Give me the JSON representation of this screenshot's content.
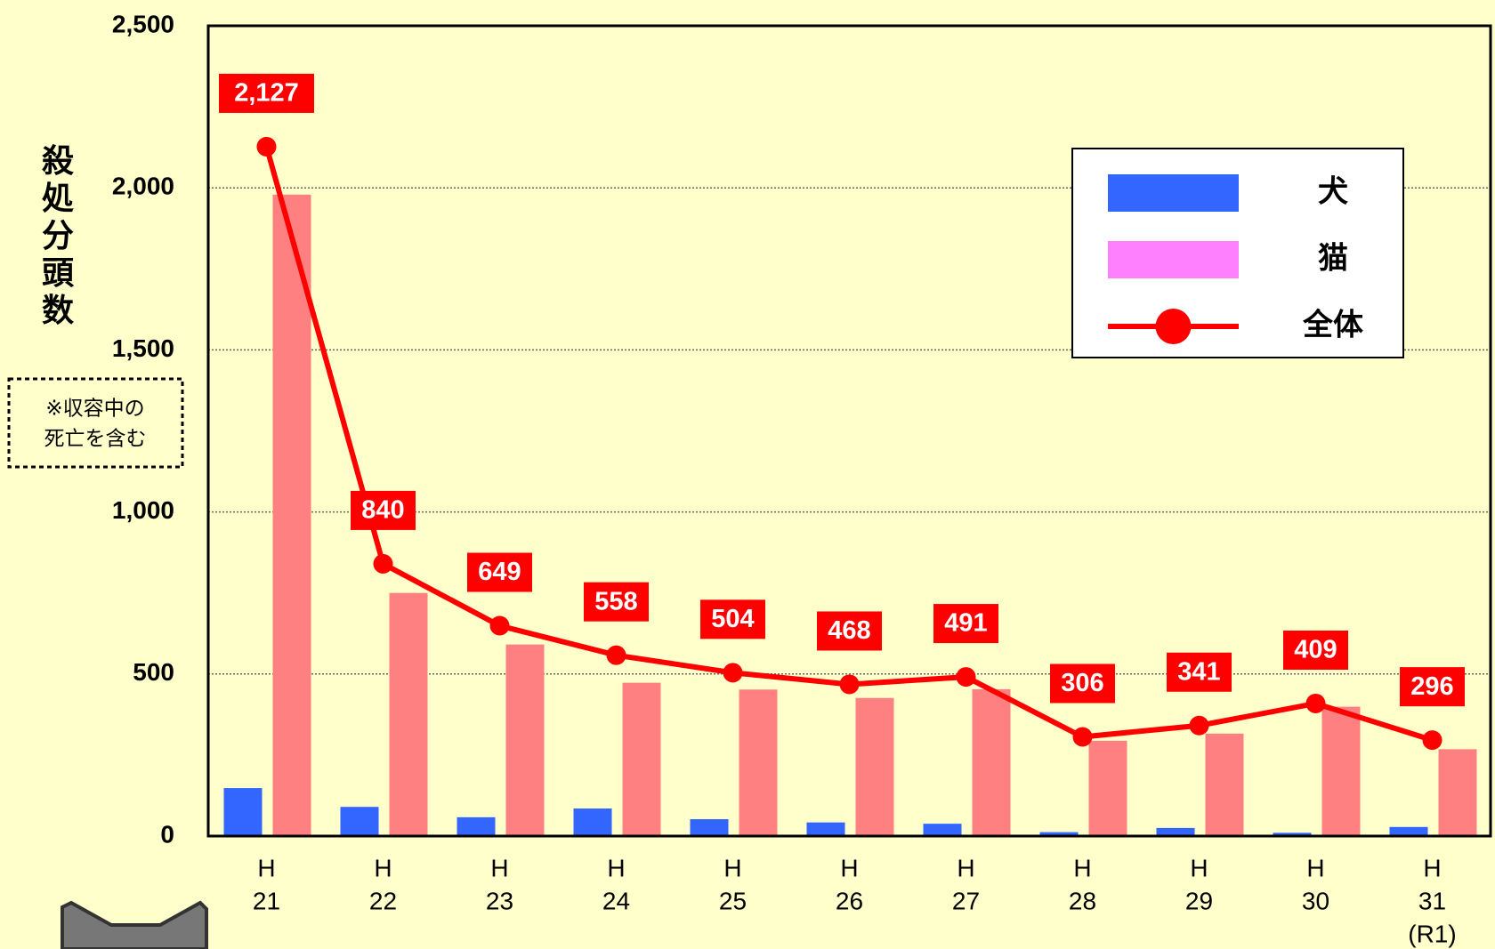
{
  "chart_data": {
    "type": "bar",
    "y_axis_label": "殺処分頭数",
    "note": [
      "※収容中の",
      "死亡を含む"
    ],
    "categories": [
      [
        "H",
        "21"
      ],
      [
        "H",
        "22"
      ],
      [
        "H",
        "23"
      ],
      [
        "H",
        "24"
      ],
      [
        "H",
        "25"
      ],
      [
        "H",
        "26"
      ],
      [
        "H",
        "27"
      ],
      [
        "H",
        "28"
      ],
      [
        "H",
        "29"
      ],
      [
        "H",
        "30"
      ],
      [
        "H",
        "31",
        "(R1)"
      ]
    ],
    "series": [
      {
        "name": "犬",
        "type": "bar",
        "color": "#3366ff",
        "values": [
          148,
          90,
          58,
          85,
          52,
          42,
          38,
          12,
          25,
          10,
          28
        ]
      },
      {
        "name": "猫",
        "type": "bar",
        "color": "#ff8080",
        "legend_color": "#ff80ff",
        "values": [
          1979,
          750,
          591,
          473,
          452,
          426,
          453,
          294,
          316,
          399,
          268
        ]
      },
      {
        "name": "全体",
        "type": "line",
        "color": "#ff0000",
        "values": [
          2127,
          840,
          649,
          558,
          504,
          468,
          491,
          306,
          341,
          409,
          296
        ],
        "value_labels": [
          "2,127",
          "840",
          "649",
          "558",
          "504",
          "468",
          "491",
          "306",
          "341",
          "409",
          "296"
        ]
      }
    ],
    "ylim": [
      0,
      2500
    ],
    "yticks": [
      0,
      500,
      {
        "value": 1000,
        "label": "1,000"
      },
      {
        "value": 1500,
        "label": "1,500"
      },
      {
        "value": 2000,
        "label": "2,000"
      },
      {
        "value": 2500,
        "label": "2,500"
      }
    ],
    "grid": true,
    "legend": "upper right"
  }
}
